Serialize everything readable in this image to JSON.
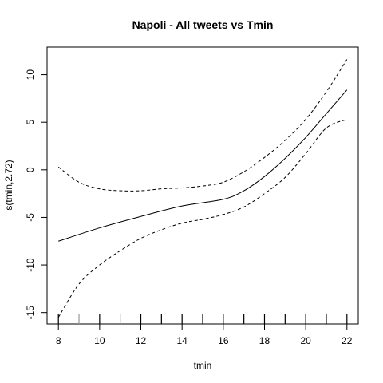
{
  "chart_data": {
    "type": "line",
    "title": "Napoli - All tweets vs Tmin",
    "xlabel": "tmin",
    "ylabel": "s(tmin,2.72)",
    "xlim": [
      7.45,
      22.55
    ],
    "ylim": [
      -16.2,
      12.9
    ],
    "x_ticks": [
      8,
      10,
      12,
      14,
      16,
      18,
      20,
      22
    ],
    "y_ticks": [
      -15,
      -10,
      -5,
      0,
      5,
      10
    ],
    "grid": false,
    "legend": "none",
    "series": [
      {
        "style": "solid",
        "x": [
          8,
          10,
          12,
          14,
          16,
          17,
          18,
          19,
          20,
          21,
          22
        ],
        "y": [
          -7.5,
          -6.1,
          -4.9,
          -3.8,
          -3.1,
          -2.2,
          -0.7,
          1.2,
          3.4,
          5.9,
          8.4
        ]
      },
      {
        "style": "dashed",
        "x": [
          8,
          9,
          10,
          11,
          12,
          13,
          14,
          15,
          16,
          17,
          18,
          19,
          20,
          21,
          22
        ],
        "y": [
          0.3,
          -1.3,
          -2.0,
          -2.2,
          -2.2,
          -2.0,
          -1.9,
          -1.7,
          -1.3,
          -0.2,
          1.3,
          3.1,
          5.3,
          8.2,
          11.6
        ]
      },
      {
        "style": "dashed",
        "x": [
          8,
          9,
          10,
          11,
          12,
          13,
          14,
          15,
          16,
          17,
          18,
          19,
          20,
          21,
          22
        ],
        "y": [
          -15.5,
          -12.0,
          -10.0,
          -8.5,
          -7.2,
          -6.3,
          -5.6,
          -5.2,
          -4.7,
          -3.9,
          -2.5,
          -0.8,
          1.7,
          4.4,
          5.3
        ]
      }
    ],
    "rug": [
      8,
      9,
      10,
      11,
      12,
      13,
      14,
      15,
      16,
      17,
      18,
      19,
      20,
      21,
      22
    ]
  }
}
